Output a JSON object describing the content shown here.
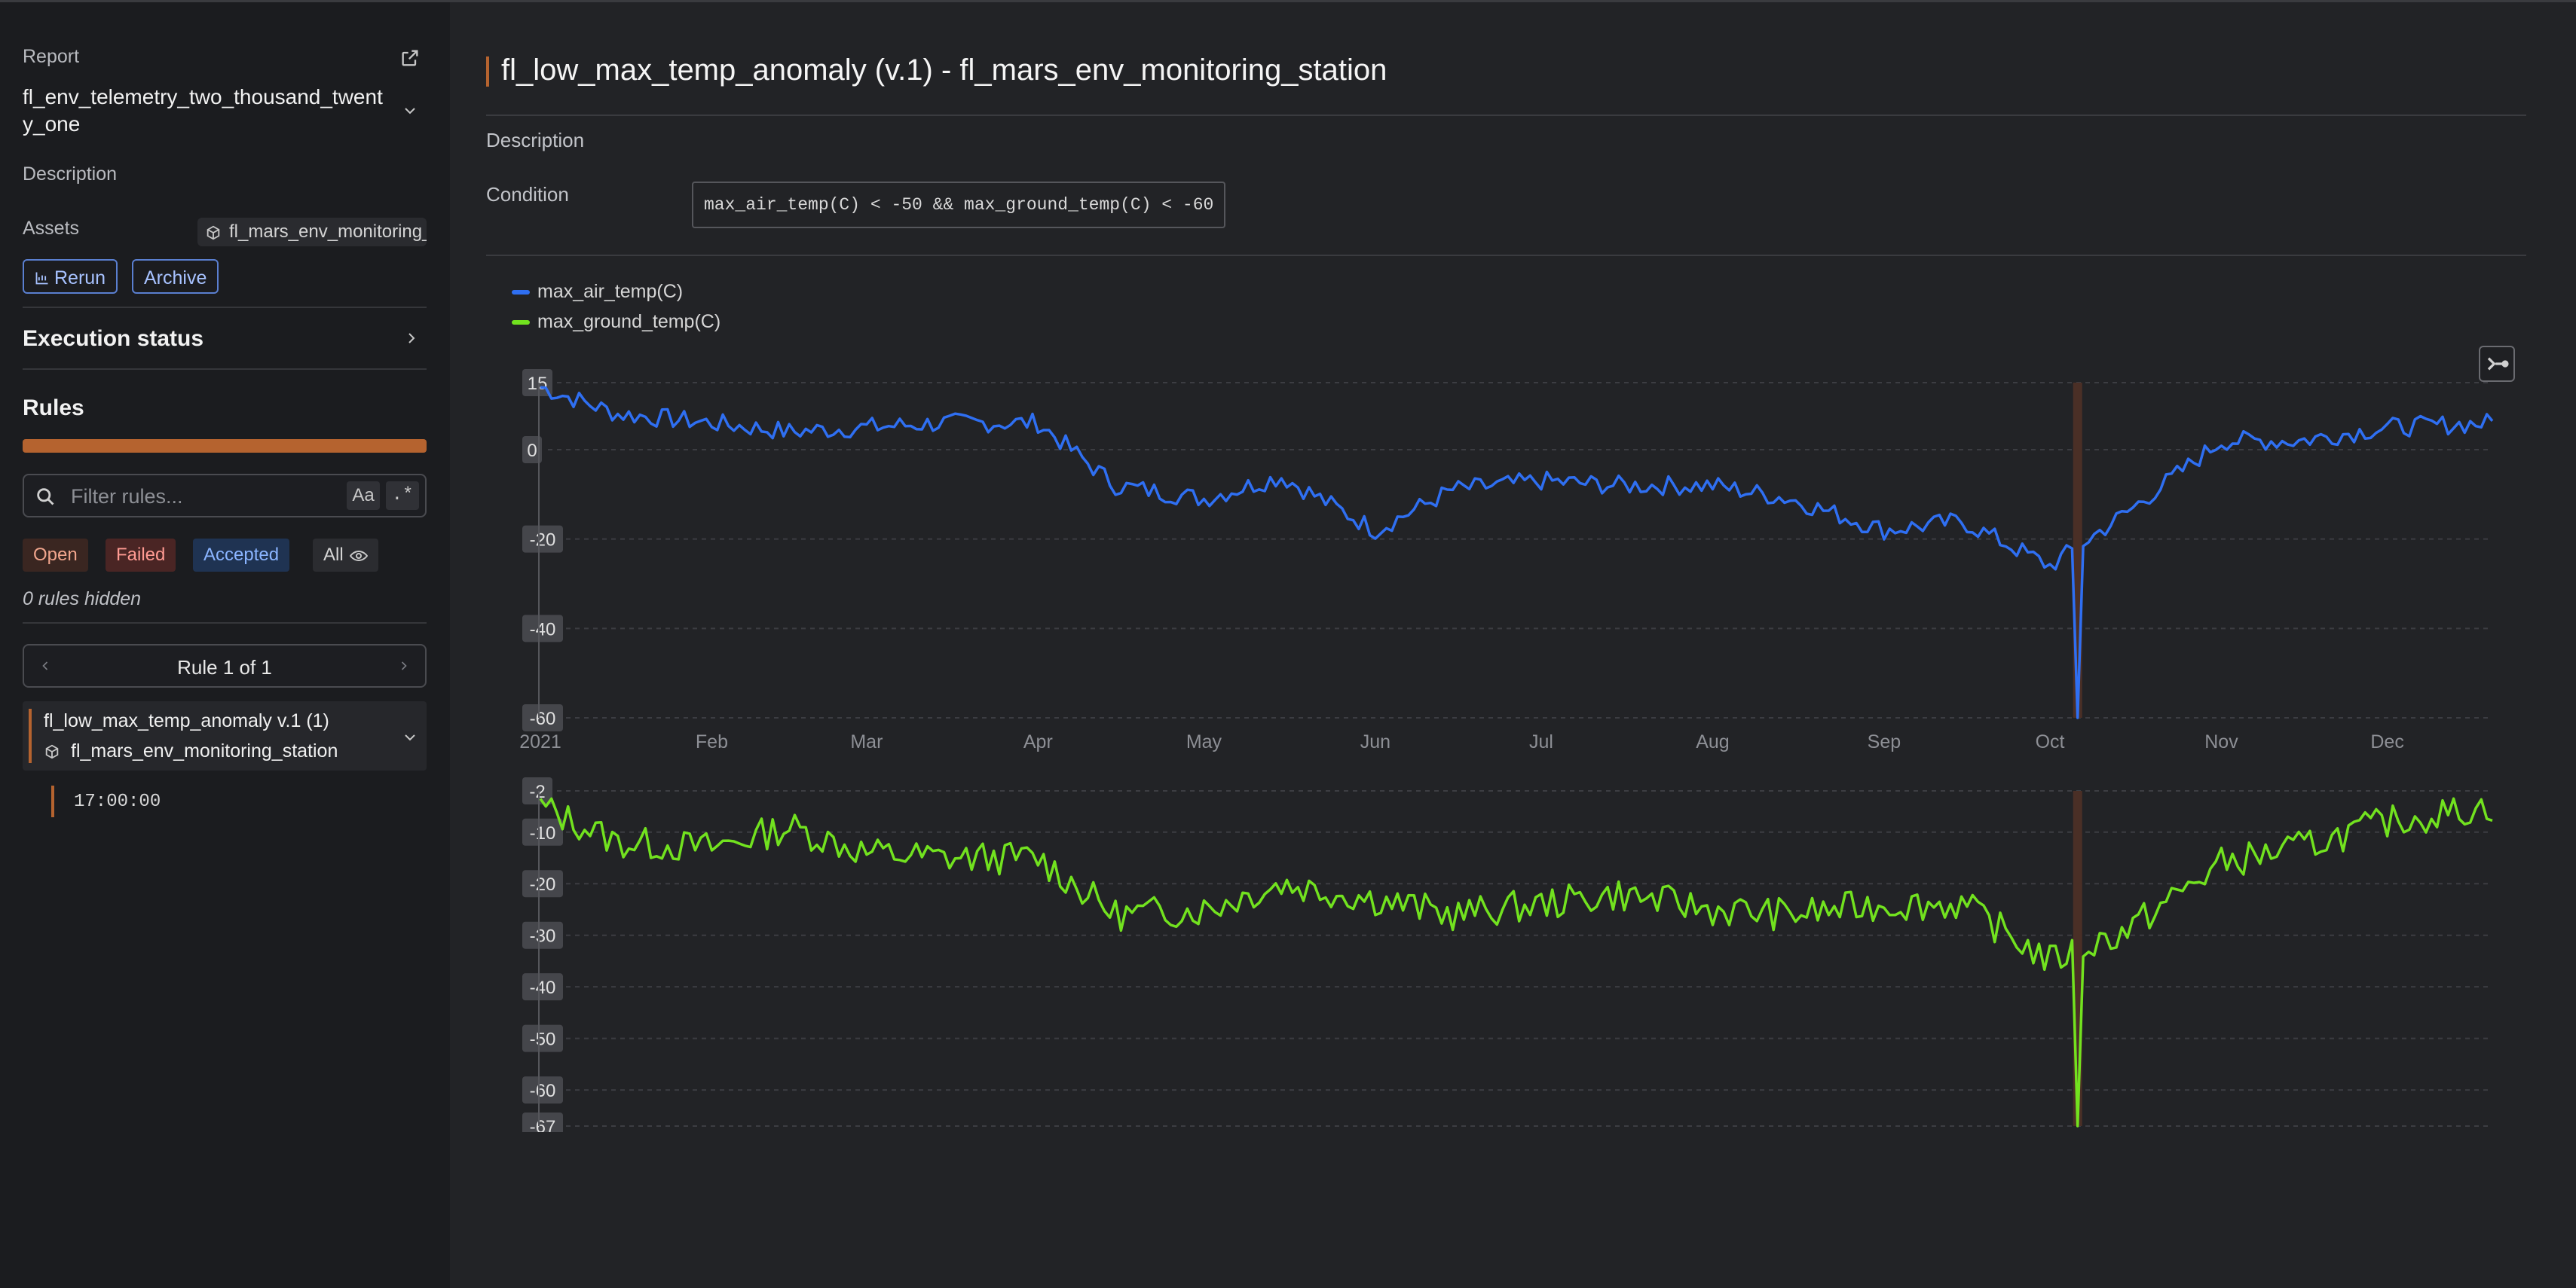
{
  "sidebar": {
    "report_label": "Report",
    "report_name": "fl_env_telemetry_two_thousand_twenty_one",
    "description_label": "Description",
    "assets_label": "Assets",
    "asset_chip": "fl_mars_env_monitoring_station",
    "rerun_label": "Rerun",
    "archive_label": "Archive",
    "execution_status_label": "Execution status",
    "rules_title": "Rules",
    "rules_progress_failed_fraction": 1.0,
    "filter_placeholder": "Filter rules...",
    "filter_case_label": "Aa",
    "filter_regex_label": ".*",
    "pills": {
      "open": "Open",
      "failed": "Failed",
      "accepted": "Accepted",
      "all": "All"
    },
    "hidden_count": "0 rules hidden",
    "pager_label": "Rule 1 of 1",
    "rule_card": {
      "title": "fl_low_max_temp_anomaly v.1 (1)",
      "asset": "fl_mars_env_monitoring_station"
    },
    "time_item": "17:00:00"
  },
  "main": {
    "title": "fl_low_max_temp_anomaly (v.1) - fl_mars_env_monitoring_station",
    "description_label": "Description",
    "condition_label": "Condition",
    "condition": "max_air_temp(C) < -50 && max_ground_temp(C) < -60"
  },
  "colors": {
    "air": "#2f6ff2",
    "ground": "#72e21f",
    "accent": "#b5632f",
    "highlight": "#4a2f26"
  },
  "chart_data": [
    {
      "type": "line",
      "series": [
        {
          "name": "max_air_temp(C)"
        }
      ],
      "ylim": [
        -60,
        15
      ],
      "yticks": [
        15,
        0,
        -20,
        -40,
        -60
      ],
      "xticks": [
        "2021",
        "Feb",
        "Mar",
        "Apr",
        "May",
        "Jun",
        "Jul",
        "Aug",
        "Sep",
        "Oct",
        "Nov",
        "Dec"
      ],
      "x_range": [
        "2021-01-01",
        "2021-12-20"
      ],
      "anomaly_date": "2021-10-06",
      "monthly_approx": [
        {
          "x": "2021-01-01",
          "y": 14
        },
        {
          "x": "2021-01-15",
          "y": 8
        },
        {
          "x": "2021-02-01",
          "y": 6
        },
        {
          "x": "2021-02-15",
          "y": 4
        },
        {
          "x": "2021-03-01",
          "y": 5
        },
        {
          "x": "2021-03-15",
          "y": 6
        },
        {
          "x": "2021-04-01",
          "y": 6
        },
        {
          "x": "2021-04-15",
          "y": -8
        },
        {
          "x": "2021-05-01",
          "y": -11
        },
        {
          "x": "2021-05-15",
          "y": -6
        },
        {
          "x": "2021-06-01",
          "y": -18
        },
        {
          "x": "2021-06-15",
          "y": -9
        },
        {
          "x": "2021-07-01",
          "y": -7
        },
        {
          "x": "2021-07-15",
          "y": -8
        },
        {
          "x": "2021-08-01",
          "y": -8
        },
        {
          "x": "2021-08-15",
          "y": -11
        },
        {
          "x": "2021-09-01",
          "y": -18
        },
        {
          "x": "2021-09-15",
          "y": -16
        },
        {
          "x": "2021-10-01",
          "y": -26
        },
        {
          "x": "2021-10-06",
          "y": -60
        },
        {
          "x": "2021-10-15",
          "y": -14
        },
        {
          "x": "2021-11-01",
          "y": 2
        },
        {
          "x": "2021-11-15",
          "y": 2
        },
        {
          "x": "2021-12-01",
          "y": 5
        },
        {
          "x": "2021-12-20",
          "y": 6
        }
      ]
    },
    {
      "type": "line",
      "series": [
        {
          "name": "max_ground_temp(C)"
        }
      ],
      "ylim": [
        -67,
        -2
      ],
      "yticks": [
        -2,
        -10,
        -20,
        -30,
        -40,
        -50,
        -60,
        -67
      ],
      "xticks": [
        "2021",
        "Feb",
        "Mar",
        "Apr",
        "May",
        "Jun",
        "Jul",
        "Aug",
        "Sep",
        "Oct",
        "Nov",
        "Dec"
      ],
      "x_range": [
        "2021-01-01",
        "2021-12-20"
      ],
      "anomaly_date": "2021-10-06",
      "monthly_approx": [
        {
          "x": "2021-01-01",
          "y": -5
        },
        {
          "x": "2021-01-15",
          "y": -12
        },
        {
          "x": "2021-02-01",
          "y": -13
        },
        {
          "x": "2021-02-15",
          "y": -9
        },
        {
          "x": "2021-03-01",
          "y": -14
        },
        {
          "x": "2021-03-15",
          "y": -15
        },
        {
          "x": "2021-04-01",
          "y": -15
        },
        {
          "x": "2021-04-15",
          "y": -26
        },
        {
          "x": "2021-05-01",
          "y": -25
        },
        {
          "x": "2021-05-15",
          "y": -20
        },
        {
          "x": "2021-06-01",
          "y": -23
        },
        {
          "x": "2021-06-15",
          "y": -26
        },
        {
          "x": "2021-07-01",
          "y": -24
        },
        {
          "x": "2021-07-15",
          "y": -22
        },
        {
          "x": "2021-08-01",
          "y": -25
        },
        {
          "x": "2021-08-15",
          "y": -26
        },
        {
          "x": "2021-09-01",
          "y": -24
        },
        {
          "x": "2021-09-15",
          "y": -24
        },
        {
          "x": "2021-10-01",
          "y": -35
        },
        {
          "x": "2021-10-06",
          "y": -67
        },
        {
          "x": "2021-10-15",
          "y": -29
        },
        {
          "x": "2021-11-01",
          "y": -16
        },
        {
          "x": "2021-11-15",
          "y": -13
        },
        {
          "x": "2021-12-01",
          "y": -8
        },
        {
          "x": "2021-12-20",
          "y": -5
        }
      ]
    }
  ]
}
